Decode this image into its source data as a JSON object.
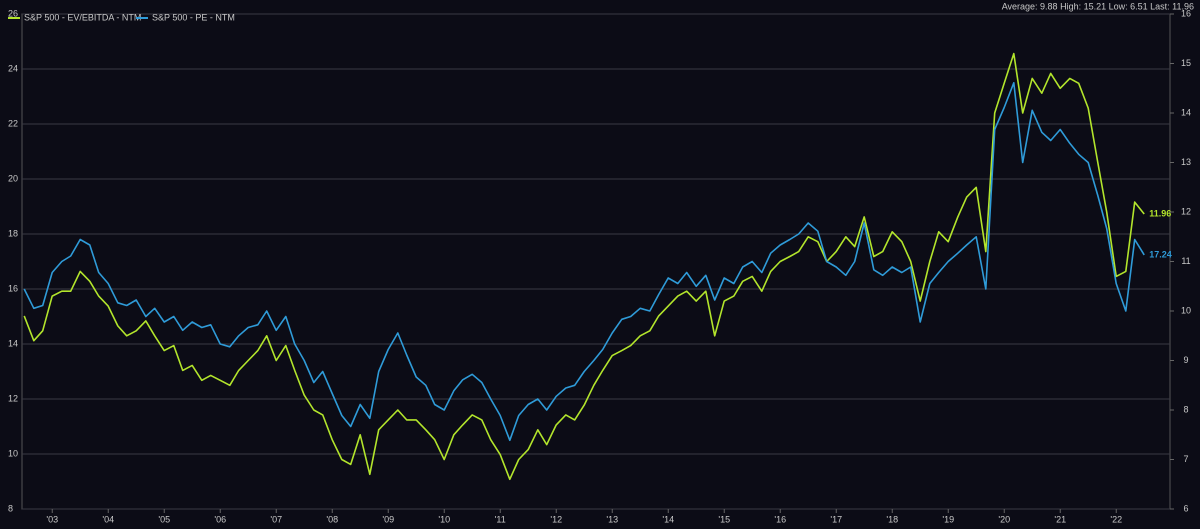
{
  "chart_data": {
    "type": "line",
    "annotation": "Average: 9.88 High: 15.21 Low: 6.51 Last: 11.96",
    "x": [
      2002.5,
      2002.67,
      2002.83,
      2003,
      2003.17,
      2003.33,
      2003.5,
      2003.67,
      2003.83,
      2004,
      2004.17,
      2004.33,
      2004.5,
      2004.67,
      2004.83,
      2005,
      2005.17,
      2005.33,
      2005.5,
      2005.67,
      2005.83,
      2006,
      2006.17,
      2006.33,
      2006.5,
      2006.67,
      2006.83,
      2007,
      2007.17,
      2007.33,
      2007.5,
      2007.67,
      2007.83,
      2008,
      2008.17,
      2008.33,
      2008.5,
      2008.67,
      2008.83,
      2009,
      2009.17,
      2009.33,
      2009.5,
      2009.67,
      2009.83,
      2010,
      2010.17,
      2010.33,
      2010.5,
      2010.67,
      2010.83,
      2011,
      2011.17,
      2011.33,
      2011.5,
      2011.67,
      2011.83,
      2012,
      2012.17,
      2012.33,
      2012.5,
      2012.67,
      2012.83,
      2013,
      2013.17,
      2013.33,
      2013.5,
      2013.67,
      2013.83,
      2014,
      2014.17,
      2014.33,
      2014.5,
      2014.67,
      2014.83,
      2015,
      2015.17,
      2015.33,
      2015.5,
      2015.67,
      2015.83,
      2016,
      2016.17,
      2016.33,
      2016.5,
      2016.67,
      2016.83,
      2017,
      2017.17,
      2017.33,
      2017.5,
      2017.67,
      2017.83,
      2018,
      2018.17,
      2018.33,
      2018.5,
      2018.67,
      2018.83,
      2019,
      2019.17,
      2019.33,
      2019.5,
      2019.67,
      2019.83,
      2020,
      2020.17,
      2020.33,
      2020.5,
      2020.67,
      2020.83,
      2021,
      2021.17,
      2021.33,
      2021.5,
      2021.67,
      2021.83,
      2022,
      2022.17,
      2022.33,
      2022.5
    ],
    "series": [
      {
        "name": "S&P 500 - EV/EBITDA - NTM",
        "color": "#b3e52c",
        "axis": "y2",
        "values": [
          9.9,
          9.4,
          9.6,
          10.3,
          10.4,
          10.4,
          10.8,
          10.6,
          10.3,
          10.1,
          9.7,
          9.5,
          9.6,
          9.8,
          9.5,
          9.2,
          9.3,
          8.8,
          8.9,
          8.6,
          8.7,
          8.6,
          8.5,
          8.8,
          9.0,
          9.2,
          9.5,
          9.0,
          9.3,
          8.8,
          8.3,
          8.0,
          7.9,
          7.4,
          7.0,
          6.9,
          7.5,
          6.7,
          7.6,
          7.8,
          8.0,
          7.8,
          7.8,
          7.6,
          7.4,
          7.0,
          7.5,
          7.7,
          7.9,
          7.8,
          7.4,
          7.1,
          6.6,
          7.0,
          7.2,
          7.6,
          7.3,
          7.7,
          7.9,
          7.8,
          8.1,
          8.5,
          8.8,
          9.1,
          9.2,
          9.3,
          9.5,
          9.6,
          9.9,
          10.1,
          10.3,
          10.4,
          10.2,
          10.4,
          9.5,
          10.2,
          10.3,
          10.6,
          10.7,
          10.4,
          10.8,
          11.0,
          11.1,
          11.2,
          11.5,
          11.4,
          11.0,
          11.2,
          11.5,
          11.3,
          11.9,
          11.1,
          11.2,
          11.6,
          11.4,
          11.0,
          10.2,
          11.0,
          11.6,
          11.4,
          11.9,
          12.3,
          12.5,
          11.2,
          14.0,
          14.6,
          15.2,
          14.0,
          14.7,
          14.4,
          14.8,
          14.5,
          14.7,
          14.6,
          14.1,
          13.0,
          12.0,
          10.7,
          10.8,
          12.2,
          11.96
        ]
      },
      {
        "name": "S&P 500 - PE - NTM",
        "color": "#2f9bd8",
        "values": [
          16.0,
          15.3,
          15.4,
          16.6,
          17.0,
          17.2,
          17.8,
          17.6,
          16.6,
          16.2,
          15.5,
          15.4,
          15.6,
          15.0,
          15.3,
          14.8,
          15.0,
          14.5,
          14.8,
          14.6,
          14.7,
          14.0,
          13.9,
          14.3,
          14.6,
          14.7,
          15.2,
          14.5,
          15.0,
          14.0,
          13.4,
          12.6,
          13.0,
          12.2,
          11.4,
          11.0,
          11.8,
          11.3,
          13.0,
          13.8,
          14.4,
          13.6,
          12.8,
          12.5,
          11.8,
          11.6,
          12.3,
          12.7,
          12.9,
          12.6,
          12.0,
          11.4,
          10.5,
          11.4,
          11.8,
          12.0,
          11.6,
          12.1,
          12.4,
          12.5,
          13.0,
          13.4,
          13.8,
          14.4,
          14.9,
          15.0,
          15.3,
          15.2,
          15.8,
          16.4,
          16.2,
          16.6,
          16.1,
          16.5,
          15.6,
          16.4,
          16.2,
          16.8,
          17.0,
          16.6,
          17.3,
          17.6,
          17.8,
          18.0,
          18.4,
          18.1,
          17.0,
          16.8,
          16.5,
          17.0,
          18.4,
          16.7,
          16.5,
          16.8,
          16.6,
          16.8,
          14.8,
          16.2,
          16.6,
          17.0,
          17.3,
          17.6,
          17.9,
          16.0,
          21.8,
          22.6,
          23.5,
          20.6,
          22.5,
          21.7,
          21.4,
          21.8,
          21.3,
          20.9,
          20.6,
          19.4,
          18.2,
          16.2,
          15.2,
          17.8,
          17.24
        ]
      }
    ],
    "xlim": [
      2002.46,
      2022.96
    ],
    "xticks": [
      {
        "value": 2003,
        "label": "'03"
      },
      {
        "value": 2004,
        "label": "'04"
      },
      {
        "value": 2005,
        "label": "'05"
      },
      {
        "value": 2006,
        "label": "'06"
      },
      {
        "value": 2007,
        "label": "'07"
      },
      {
        "value": 2008,
        "label": "'08"
      },
      {
        "value": 2009,
        "label": "'09"
      },
      {
        "value": 2010,
        "label": "'10"
      },
      {
        "value": 2011,
        "label": "'11"
      },
      {
        "value": 2012,
        "label": "'12"
      },
      {
        "value": 2013,
        "label": "'13"
      },
      {
        "value": 2014,
        "label": "'14"
      },
      {
        "value": 2015,
        "label": "'15"
      },
      {
        "value": 2016,
        "label": "'16"
      },
      {
        "value": 2017,
        "label": "'17"
      },
      {
        "value": 2018,
        "label": "'18"
      },
      {
        "value": 2019,
        "label": "'19"
      },
      {
        "value": 2020,
        "label": "'20"
      },
      {
        "value": 2021,
        "label": "'21"
      },
      {
        "value": 2022,
        "label": "'22"
      }
    ],
    "ylim": [
      8,
      26
    ],
    "yticks": [
      8,
      10,
      12,
      14,
      16,
      18,
      20,
      22,
      24,
      26
    ],
    "y2lim": [
      6,
      16
    ],
    "y2ticks": [
      6,
      7,
      8,
      9,
      10,
      11,
      12,
      13,
      14,
      15,
      16
    ],
    "grid": true
  }
}
